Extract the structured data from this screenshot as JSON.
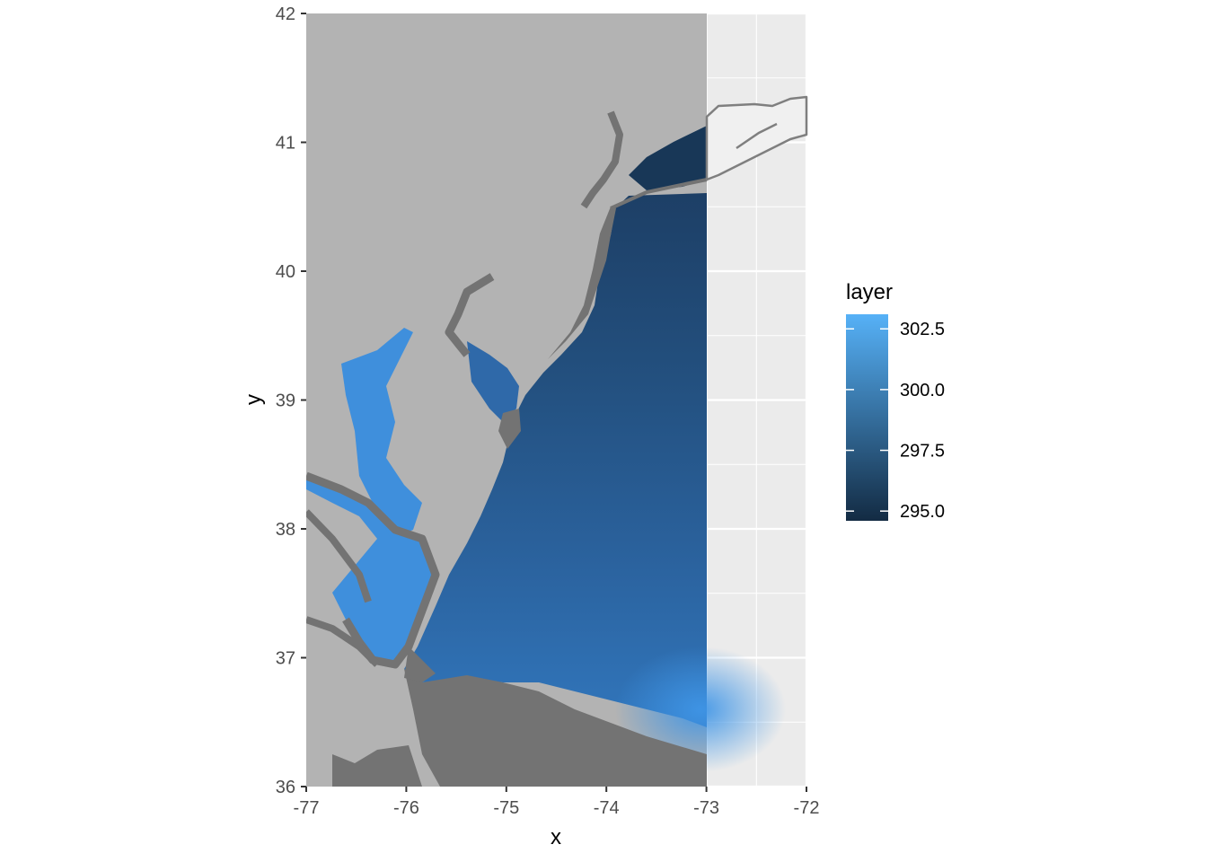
{
  "chart_data": {
    "type": "heatmap",
    "title": "",
    "xlabel": "x",
    "ylabel": "y",
    "xlim": [
      -77,
      -72
    ],
    "ylim": [
      36,
      42
    ],
    "x_ticks": [
      -77,
      -76,
      -75,
      -74,
      -73,
      -72
    ],
    "y_ticks": [
      36,
      37,
      38,
      39,
      40,
      41,
      42
    ],
    "raster_extent": {
      "xmin": -77,
      "xmax": -73,
      "ymin": 36,
      "ymax": 42
    },
    "legend": {
      "title": "layer",
      "placement": "right",
      "breaks": [
        295.0,
        297.5,
        300.0,
        302.5
      ],
      "break_labels": [
        "295.0",
        "297.5",
        "300.0",
        "302.5"
      ],
      "range": [
        294.6,
        303.1
      ],
      "color_low": "#132B43",
      "color_high": "#56B1F7"
    },
    "colors": {
      "panel_background": "#ebebeb",
      "grid_major": "#ffffff",
      "land_na": "#b3b3b3",
      "coast_fill": "#737373",
      "outline": "#7f7f7f",
      "water_shallow": "#3f8fdc",
      "water_mid": "#2e67a4",
      "water_deep": "#1d3f66",
      "water_nearshore_ny": "#183757"
    }
  }
}
